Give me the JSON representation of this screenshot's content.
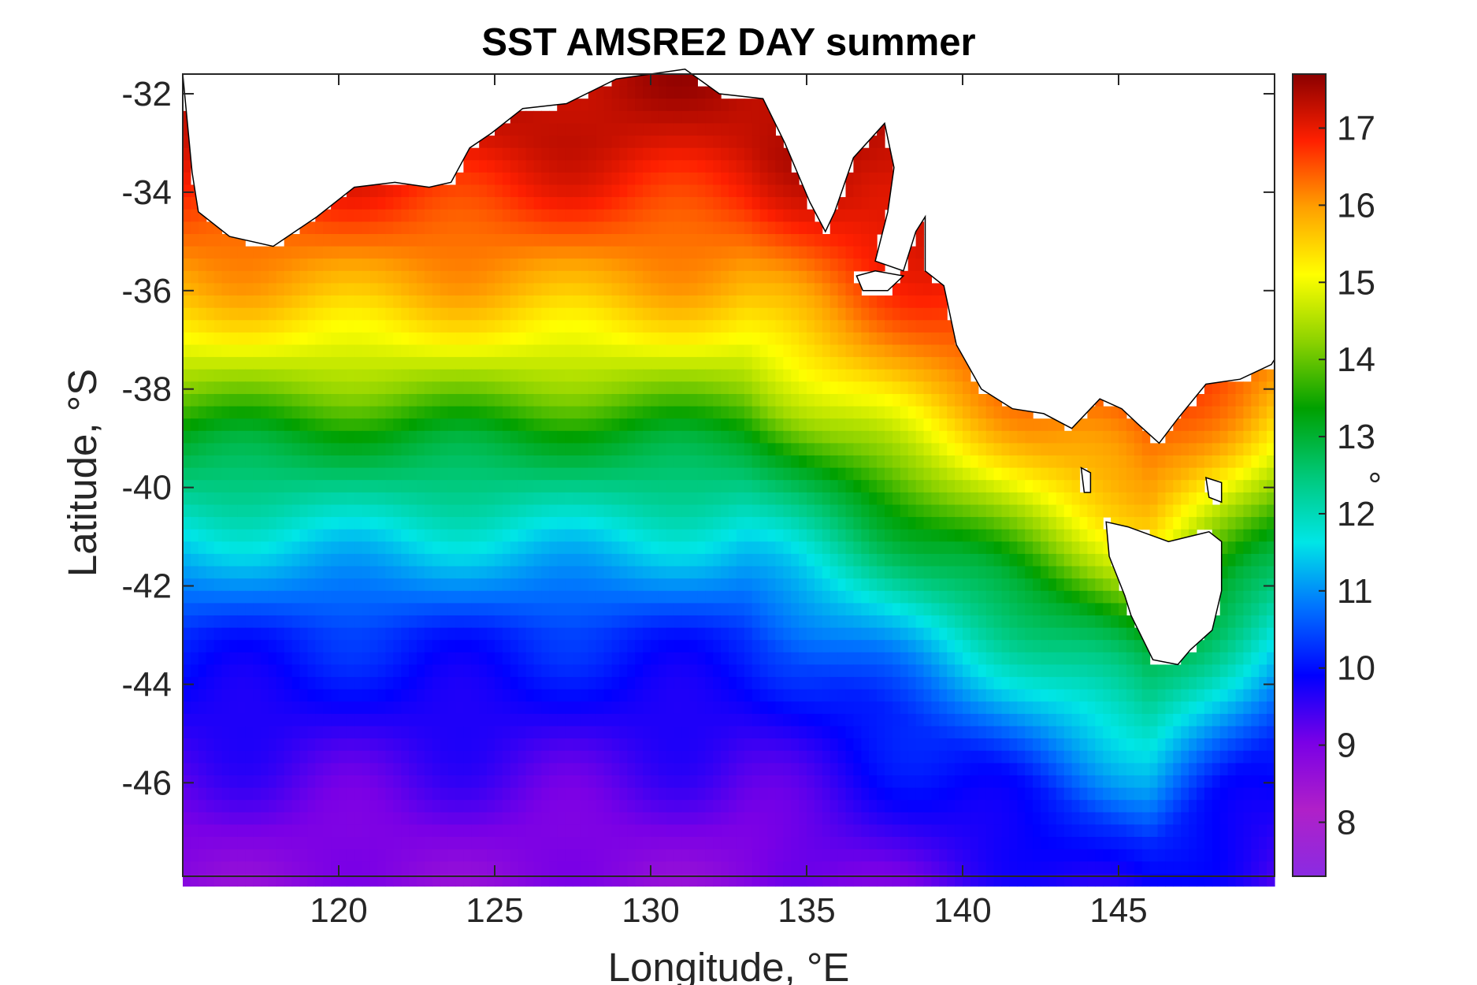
{
  "chart_data": {
    "type": "heatmap",
    "title": "SST AMSRE2 DAY summer",
    "xlabel": "Longitude, °E",
    "ylabel": "Latitude, °S",
    "colorbar_label": "°",
    "xlim": [
      115,
      150
    ],
    "ylim": [
      -47.9,
      -31.6
    ],
    "x_ticks": [
      120,
      125,
      130,
      135,
      140,
      145
    ],
    "x_tick_labels": [
      "120",
      "125",
      "130",
      "135",
      "140",
      "145"
    ],
    "y_ticks": [
      -32,
      -34,
      -36,
      -38,
      -40,
      -42,
      -44,
      -46
    ],
    "y_tick_labels": [
      "-32",
      "-34",
      "-36",
      "-38",
      "-40",
      "-42",
      "-44",
      "-46"
    ],
    "color_range": [
      7.3,
      17.7
    ],
    "colorbar_ticks": [
      8,
      9,
      10,
      11,
      12,
      13,
      14,
      15,
      16,
      17
    ],
    "colorbar_tick_labels": [
      "8",
      "9",
      "10",
      "11",
      "12",
      "13",
      "14",
      "15",
      "16",
      "17"
    ],
    "colormap": [
      "#8a2be2",
      "#b020c8",
      "#7a00e6",
      "#0000ff",
      "#0070ff",
      "#00e6e6",
      "#00c878",
      "#00a000",
      "#8cd200",
      "#ffff00",
      "#ffa000",
      "#ff2000",
      "#8b0000"
    ],
    "grid": false,
    "sst_profile_meridional": {
      "lat": [
        -32,
        -33,
        -34,
        -35,
        -36,
        -37,
        -38,
        -39,
        -40,
        -41,
        -42,
        -43,
        -44,
        -45,
        -46,
        -47,
        -48
      ],
      "sst_at_130E": [
        17.4,
        17.2,
        16.8,
        16.3,
        15.8,
        15.1,
        14.2,
        13.1,
        12.4,
        11.6,
        10.9,
        10.2,
        9.9,
        9.6,
        9.3,
        9.0,
        8.8
      ]
    }
  }
}
